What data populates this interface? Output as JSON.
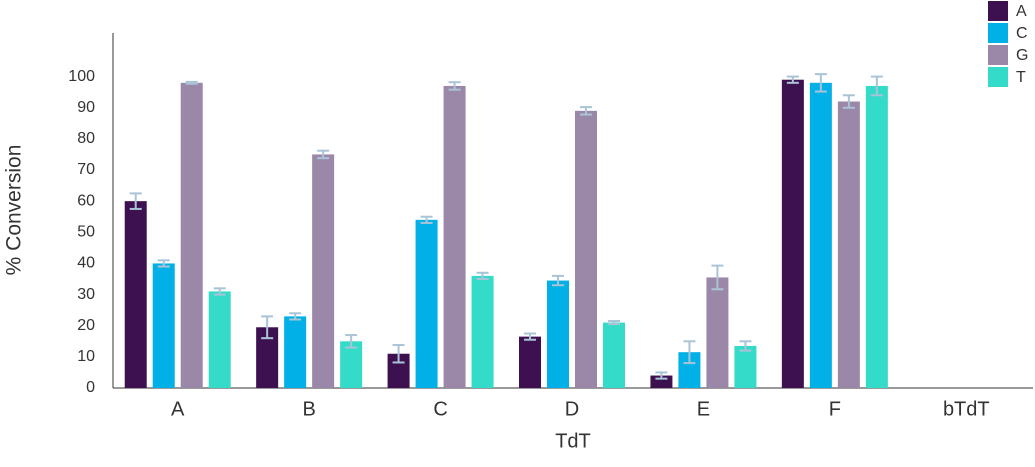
{
  "chart_data": {
    "type": "bar",
    "x_label": "TdT",
    "y_label": "% Conversion",
    "categories": [
      "A",
      "B",
      "C",
      "D",
      "E",
      "F",
      "bTdT"
    ],
    "series": [
      {
        "name": "A",
        "color": "#3d1150",
        "values": [
          60,
          19.5,
          11,
          16.5,
          4,
          99,
          null
        ],
        "errors": [
          2.5,
          3.5,
          2.8,
          1,
          1,
          1,
          null
        ]
      },
      {
        "name": "C",
        "color": "#00b0e6",
        "values": [
          40,
          23,
          54,
          34.5,
          11.5,
          98,
          null
        ],
        "errors": [
          1,
          1,
          1,
          1.5,
          3.5,
          2.8,
          null
        ]
      },
      {
        "name": "G",
        "color": "#9b87a8",
        "values": [
          98,
          75,
          97,
          89,
          35.5,
          92,
          null
        ],
        "errors": [
          0.3,
          1.2,
          1.2,
          1.2,
          3.8,
          2,
          null
        ]
      },
      {
        "name": "T",
        "color": "#33dbc8",
        "values": [
          31,
          15,
          36,
          21,
          13.5,
          97,
          null
        ],
        "errors": [
          1,
          2,
          1,
          0.5,
          1.5,
          3,
          null
        ]
      }
    ],
    "error_color": "#a9c4d6",
    "ylim": [
      0,
      114
    ],
    "yticks": [
      0,
      10,
      20,
      30,
      40,
      50,
      60,
      70,
      80,
      90,
      100
    ],
    "grid": false,
    "legend": "top-right"
  }
}
